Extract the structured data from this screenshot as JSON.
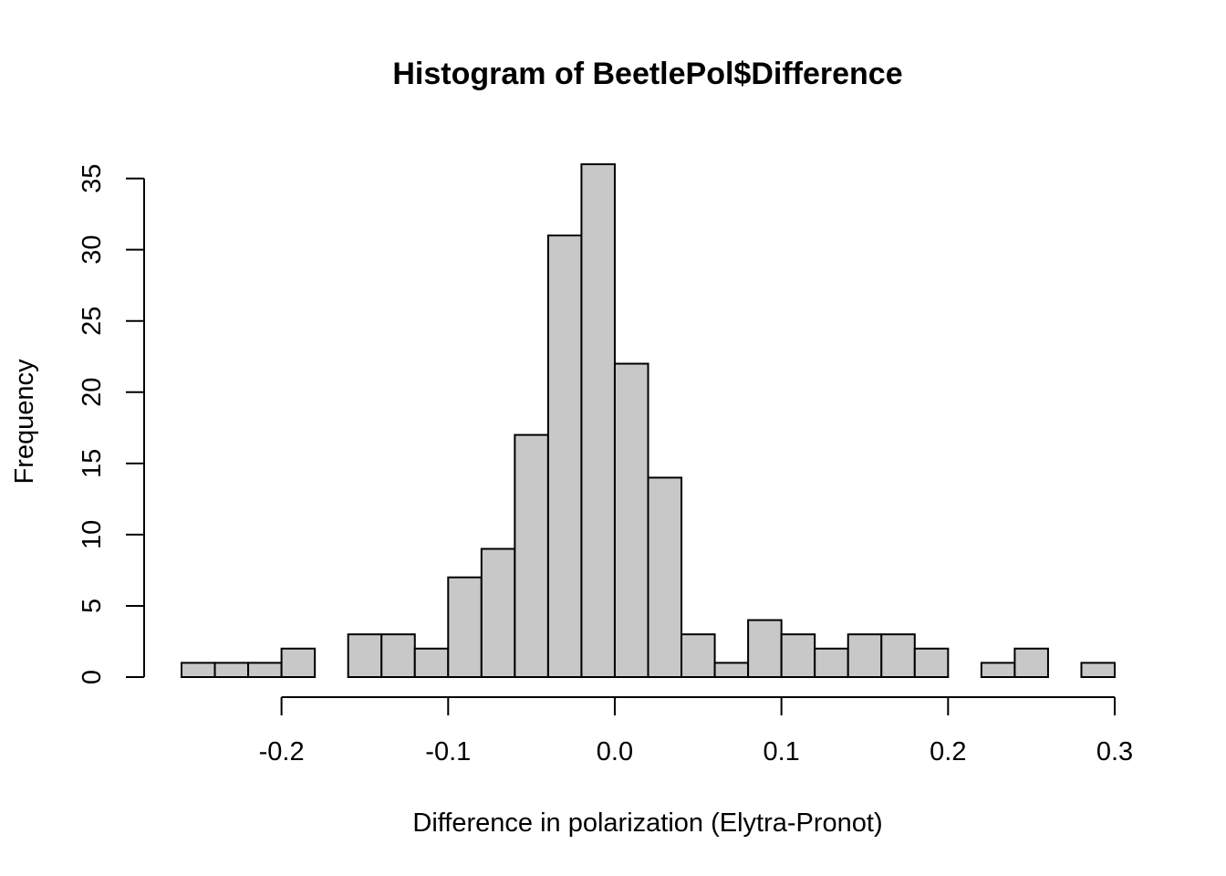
{
  "chart_data": {
    "type": "bar",
    "title": "Histogram of BeetlePol$Difference",
    "xlabel": "Difference in polarization (Elytra-Pronot)",
    "ylabel": "Frequency",
    "bin_width": 0.02,
    "bin_edges": [
      -0.26,
      -0.24,
      -0.22,
      -0.2,
      -0.18,
      -0.16,
      -0.14,
      -0.12,
      -0.1,
      -0.08,
      -0.06,
      -0.04,
      -0.02,
      0.0,
      0.02,
      0.04,
      0.06,
      0.08,
      0.1,
      0.12,
      0.14,
      0.16,
      0.18,
      0.2,
      0.22,
      0.24,
      0.26,
      0.28,
      0.3
    ],
    "values": [
      1,
      1,
      1,
      2,
      0,
      3,
      3,
      2,
      7,
      9,
      17,
      31,
      36,
      22,
      14,
      3,
      1,
      4,
      3,
      2,
      3,
      3,
      2,
      0,
      1,
      2,
      0,
      1
    ],
    "xlim": [
      -0.26,
      0.3
    ],
    "ylim": [
      0,
      36
    ],
    "x_ticks": [
      -0.2,
      -0.1,
      0.0,
      0.1,
      0.2,
      0.3
    ],
    "x_tick_labels": [
      "-0.2",
      "-0.1",
      "0.0",
      "0.1",
      "0.2",
      "0.3"
    ],
    "y_ticks": [
      0,
      5,
      10,
      15,
      20,
      25,
      30,
      35
    ],
    "y_tick_labels": [
      "0",
      "5",
      "10",
      "15",
      "20",
      "25",
      "30",
      "35"
    ],
    "bar_color": "#c8c8c8",
    "grid": false
  }
}
